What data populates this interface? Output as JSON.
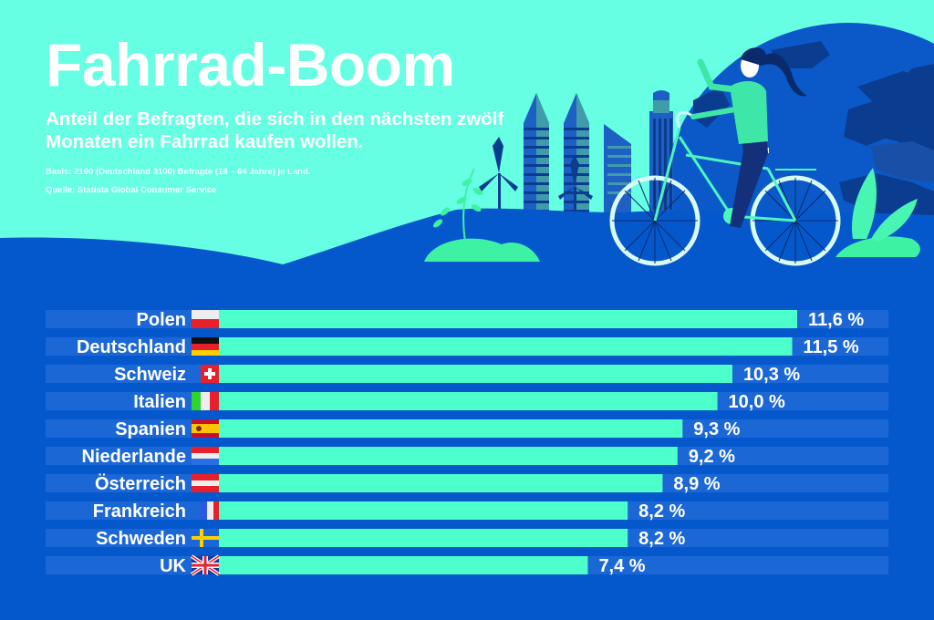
{
  "header": {
    "title": "Fahrrad-Boom",
    "subtitle": "Anteil der Befragten, die sich in den nächsten zwölf Monaten ein Fahrrad kaufen wollen.",
    "basis": "Basis: 2100 (Deutschland 3100) Befragte (18 – 64 Jahre) je Land.",
    "source": "Quelle: Statista Global Consumer Service"
  },
  "colors": {
    "sky": "#66ffe3",
    "ground": "#0558cc",
    "track": "#1c67d6",
    "bar": "#4cffcb",
    "text": "#ffffff"
  },
  "illustration": {
    "description": "Woman riding a bicycle in front of a globe, city skyline with wind turbines and plants",
    "icons": [
      "globe-icon",
      "cyclist-icon",
      "bicycle-icon",
      "skyscraper-icon",
      "wind-turbine-icon",
      "plant-icon"
    ]
  },
  "chart_data": {
    "type": "bar",
    "orientation": "horizontal",
    "title": "Fahrrad-Boom",
    "subtitle": "Anteil der Befragten, die sich in den nächsten zwölf Monaten ein Fahrrad kaufen wollen.",
    "xlabel": "",
    "ylabel": "",
    "unit": "%",
    "xlim": [
      0,
      13.4
    ],
    "grid": false,
    "legend": "none",
    "categories": [
      "Polen",
      "Deutschland",
      "Schweiz",
      "Italien",
      "Spanien",
      "Niederlande",
      "Österreich",
      "Frankreich",
      "Schweden",
      "UK"
    ],
    "values": [
      11.6,
      11.5,
      10.3,
      10.0,
      9.3,
      9.2,
      8.9,
      8.2,
      8.2,
      7.4
    ],
    "value_labels": [
      "11,6 %",
      "11,5 %",
      "10,3 %",
      "10,0 %",
      "9,3 %",
      "9,2 %",
      "8,9 %",
      "8,2 %",
      "8,2 %",
      "7,4 %"
    ],
    "flags": [
      "flag-poland",
      "flag-germany",
      "flag-switzerland",
      "flag-italy",
      "flag-spain",
      "flag-netherlands",
      "flag-austria",
      "flag-france",
      "flag-sweden",
      "flag-uk"
    ]
  }
}
